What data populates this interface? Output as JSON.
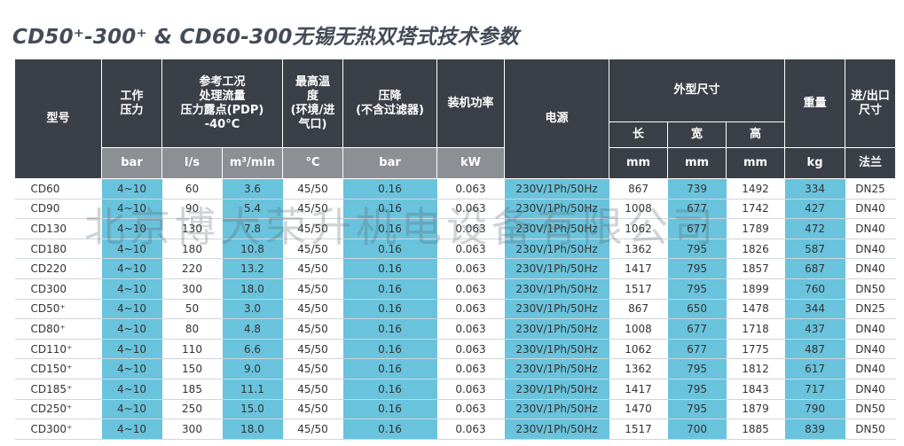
{
  "title": "CD50⁺-300⁺ & CD60-300无锡无热双塔式技术参数",
  "headers": {
    "model": "型号",
    "pressure": "工作\n压力",
    "flow": "参考工况\n处理流量\n压力露点(PDP)\n-40°C",
    "max_temp": "最高温\n度\n(环境/进\n气口)",
    "pressure_drop": "压降\n(不含过滤器)",
    "power": "装机功率",
    "supply": "电源",
    "dimensions": "外型尺寸",
    "length": "长",
    "width": "宽",
    "height": "高",
    "weight": "重量",
    "port": "进/出口\n尺寸"
  },
  "units": [
    "bar",
    "l/s",
    "m³/min",
    "°C",
    "bar",
    "kW",
    "mm",
    "mm",
    "mm",
    "kg",
    "法兰"
  ],
  "rows": [
    [
      "CD60",
      "4~10",
      "60",
      "3.6",
      "45/50",
      "0.16",
      "0.063",
      "230V/1Ph/50Hz",
      "867",
      "739",
      "1492",
      "334",
      "DN25"
    ],
    [
      "CD90",
      "4~10",
      "90",
      "5.4",
      "45/50",
      "0.16",
      "0.063",
      "230V/1Ph/50Hz",
      "1008",
      "677",
      "1742",
      "427",
      "DN40"
    ],
    [
      "CD130",
      "4~10",
      "130",
      "7.8",
      "45/50",
      "0.16",
      "0.063",
      "230V/1Ph/50Hz",
      "1062",
      "677",
      "1789",
      "472",
      "DN40"
    ],
    [
      "CD180",
      "4~10",
      "180",
      "10.8",
      "45/50",
      "0.16",
      "0.063",
      "230V/1Ph/50Hz",
      "1362",
      "795",
      "1826",
      "587",
      "DN40"
    ],
    [
      "CD220",
      "4~10",
      "220",
      "13.2",
      "45/50",
      "0.16",
      "0.063",
      "230V/1Ph/50Hz",
      "1417",
      "795",
      "1857",
      "687",
      "DN40"
    ],
    [
      "CD300",
      "4~10",
      "300",
      "18.0",
      "45/50",
      "0.16",
      "0.063",
      "230V/1Ph/50Hz",
      "1517",
      "795",
      "1899",
      "760",
      "DN50"
    ],
    [
      "CD50⁺",
      "4~10",
      "50",
      "3.0",
      "45/50",
      "0.16",
      "0.063",
      "230V/1Ph/50Hz",
      "867",
      "650",
      "1478",
      "344",
      "DN25"
    ],
    [
      "CD80⁺",
      "4~10",
      "80",
      "4.8",
      "45/50",
      "0.16",
      "0.063",
      "230V/1Ph/50Hz",
      "1008",
      "677",
      "1718",
      "437",
      "DN40"
    ],
    [
      "CD110⁺",
      "4~10",
      "110",
      "6.6",
      "45/50",
      "0.16",
      "0.063",
      "230V/1Ph/50Hz",
      "1062",
      "677",
      "1775",
      "487",
      "DN40"
    ],
    [
      "CD150⁺",
      "4~10",
      "150",
      "9.0",
      "45/50",
      "0.16",
      "0.063",
      "230V/1Ph/50Hz",
      "1362",
      "795",
      "1812",
      "617",
      "DN40"
    ],
    [
      "CD185⁺",
      "4~10",
      "185",
      "11.1",
      "45/50",
      "0.16",
      "0.063",
      "230V/1Ph/50Hz",
      "1417",
      "795",
      "1843",
      "717",
      "DN40"
    ],
    [
      "CD250⁺",
      "4~10",
      "250",
      "15.0",
      "45/50",
      "0.16",
      "0.063",
      "230V/1Ph/50Hz",
      "1470",
      "795",
      "1879",
      "790",
      "DN50"
    ],
    [
      "CD300⁺",
      "4~10",
      "300",
      "18.0",
      "45/50",
      "0.16",
      "0.063",
      "230V/1Ph/50Hz",
      "1517",
      "700",
      "1885",
      "839",
      "DN50"
    ]
  ],
  "watermark": "北京博大荣升机电设备有限公司",
  "colors": {
    "header_dark": "#3b3f47",
    "header_unit": "#8c8f94",
    "highlight": "#69c3dc"
  }
}
